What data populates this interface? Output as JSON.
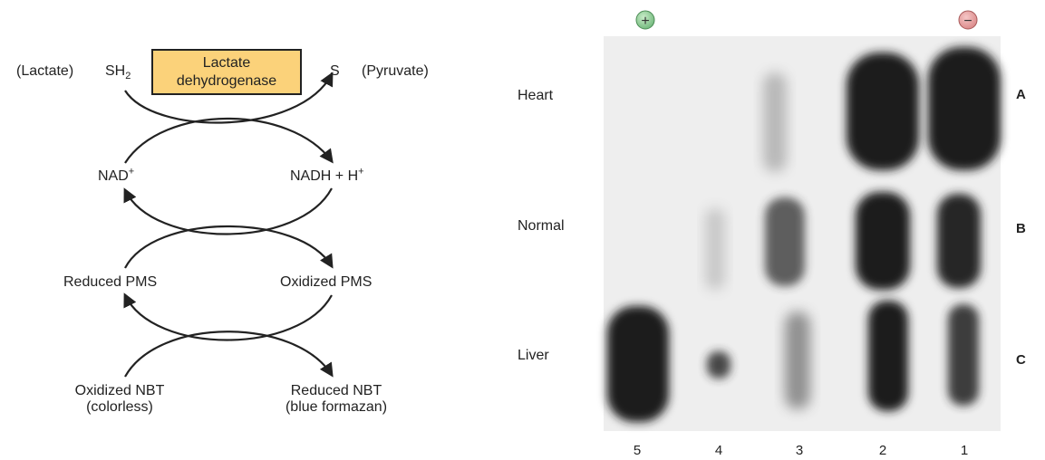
{
  "scheme": {
    "lactate": "(Lactate)",
    "sh": "SH",
    "sh_sub": "2",
    "enzyme_line1": "Lactate",
    "enzyme_line2": "dehydrogenase",
    "s": "S",
    "pyruvate": "(Pyruvate)",
    "nad": "NAD",
    "nad_sup": "+",
    "nadh": "NADH + H",
    "nadh_sup": "+",
    "reduced_pms": "Reduced PMS",
    "oxidized_pms": "Oxidized PMS",
    "oxidized_nbt": "Oxidized NBT",
    "oxidized_nbt_sub": "(colorless)",
    "reduced_nbt": "Reduced NBT",
    "reduced_nbt_sub": "(blue formazan)"
  },
  "gel": {
    "plus_symbol": "+",
    "minus_symbol": "−",
    "rows": [
      {
        "name": "Heart",
        "letter": "A"
      },
      {
        "name": "Normal",
        "letter": "B"
      },
      {
        "name": "Liver",
        "letter": "C"
      }
    ],
    "lanes": [
      "5",
      "4",
      "3",
      "2",
      "1"
    ],
    "colors": {
      "anode": "#7fc28a",
      "cathode": "#e49a9a",
      "band": "#1a1a1a",
      "gel_bg": "#eeeeee"
    }
  }
}
